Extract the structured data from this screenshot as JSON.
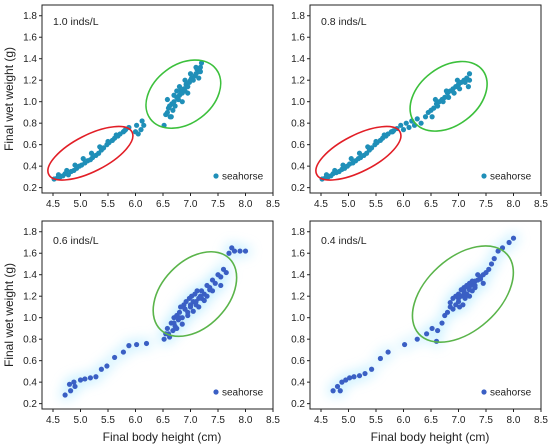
{
  "chart_data": [
    {
      "type": "scatter",
      "title": "1.0 inds/L",
      "xlabel": "",
      "ylabel": "Final wet weight (g)",
      "xlim": [
        4.3,
        8.5
      ],
      "ylim": [
        0.15,
        1.9
      ],
      "xticks": [
        "4.5",
        "5.0",
        "5.5",
        "6.0",
        "6.5",
        "7.0",
        "7.5",
        "8.0",
        "8.5"
      ],
      "yticks": [
        "0.2",
        "0.4",
        "0.6",
        "0.8",
        "1.0",
        "1.2",
        "1.4",
        "1.6",
        "1.8"
      ],
      "legend": {
        "label": "seahorse",
        "position": "bottom-right"
      },
      "point_color": "#1f8fb8",
      "glow": false,
      "series": [
        {
          "name": "seahorse",
          "x": [
            4.52,
            4.58,
            4.63,
            4.68,
            4.72,
            4.78,
            4.83,
            4.88,
            4.93,
            4.98,
            5.02,
            5.08,
            5.13,
            5.18,
            5.22,
            5.28,
            5.33,
            5.38,
            5.42,
            5.48,
            5.52,
            5.58,
            5.62,
            5.68,
            5.72,
            5.78,
            5.82,
            5.88,
            4.6,
            4.75,
            4.9,
            5.05,
            5.2,
            5.35,
            5.5,
            5.65,
            5.8,
            6.0,
            6.02,
            6.05,
            6.1,
            6.15,
            6.12,
            6.52,
            6.55,
            6.58,
            6.6,
            6.63,
            6.66,
            6.68,
            6.7,
            6.72,
            6.75,
            6.78,
            6.8,
            6.82,
            6.85,
            6.88,
            6.9,
            6.92,
            6.95,
            6.98,
            7.0,
            7.02,
            7.05,
            7.08,
            7.1,
            7.12,
            7.15,
            7.18,
            7.2,
            6.62,
            6.7,
            6.8,
            6.9,
            7.0,
            7.1,
            7.18,
            6.58,
            6.75,
            6.95,
            7.15,
            6.65,
            6.85
          ],
          "y": [
            0.28,
            0.29,
            0.3,
            0.31,
            0.33,
            0.32,
            0.35,
            0.36,
            0.38,
            0.4,
            0.41,
            0.43,
            0.45,
            0.46,
            0.48,
            0.5,
            0.52,
            0.55,
            0.57,
            0.6,
            0.62,
            0.64,
            0.66,
            0.68,
            0.7,
            0.72,
            0.74,
            0.76,
            0.32,
            0.36,
            0.41,
            0.47,
            0.52,
            0.58,
            0.63,
            0.69,
            0.73,
            0.72,
            0.78,
            0.7,
            0.74,
            0.78,
            0.82,
            0.78,
            0.88,
            0.9,
            0.94,
            0.86,
            0.98,
            0.92,
            1.0,
            0.96,
            1.04,
            1.02,
            1.06,
            1.1,
            1.08,
            1.12,
            1.1,
            1.16,
            1.14,
            1.18,
            1.2,
            1.22,
            1.2,
            1.24,
            1.26,
            1.3,
            1.28,
            1.32,
            1.36,
            0.96,
            1.06,
            1.14,
            1.2,
            1.26,
            1.32,
            1.28,
            1.02,
            1.1,
            1.08,
            1.22,
            0.86,
            1.0
          ]
        }
      ],
      "ellipses": [
        {
          "cx": 5.18,
          "cy": 0.52,
          "rx": 0.85,
          "ry": 0.1,
          "rotation": -27.0,
          "color": "#e21e26"
        },
        {
          "cx": 6.87,
          "cy": 1.07,
          "rx": 0.75,
          "ry": 0.16,
          "rotation": -37.0,
          "color": "#3cc03c"
        }
      ]
    },
    {
      "type": "scatter",
      "title": "0.8 inds/L",
      "xlabel": "",
      "ylabel": "",
      "xlim": [
        4.3,
        8.5
      ],
      "ylim": [
        0.15,
        1.9
      ],
      "xticks": [
        "4.5",
        "5.0",
        "5.5",
        "6.0",
        "6.5",
        "7.0",
        "7.5",
        "8.0",
        "8.5"
      ],
      "yticks": [
        "0.2",
        "0.4",
        "0.6",
        "0.8",
        "1.0",
        "1.2",
        "1.4",
        "1.6",
        "1.8"
      ],
      "legend": {
        "label": "seahorse",
        "position": "bottom-right"
      },
      "point_color": "#1f8fb8",
      "glow": false,
      "series": [
        {
          "name": "seahorse",
          "x": [
            4.52,
            4.58,
            4.63,
            4.68,
            4.72,
            4.78,
            4.83,
            4.88,
            4.93,
            4.98,
            5.02,
            5.08,
            5.13,
            5.18,
            5.22,
            5.28,
            5.33,
            5.38,
            5.42,
            5.48,
            5.52,
            5.58,
            5.62,
            5.68,
            5.72,
            5.78,
            5.82,
            5.88,
            4.6,
            4.75,
            4.9,
            5.05,
            5.2,
            5.35,
            5.5,
            5.65,
            5.8,
            5.95,
            6.0,
            6.05,
            6.1,
            6.15,
            6.2,
            6.25,
            6.32,
            6.4,
            6.45,
            6.5,
            6.55,
            6.6,
            6.65,
            6.7,
            6.75,
            6.8,
            6.85,
            6.9,
            6.95,
            7.0,
            7.05,
            7.1,
            7.15,
            7.2,
            6.52,
            6.62,
            6.72,
            6.82,
            6.92,
            7.02,
            7.12,
            7.2,
            6.58,
            6.78,
            6.98,
            7.18
          ],
          "y": [
            0.28,
            0.29,
            0.3,
            0.31,
            0.33,
            0.34,
            0.35,
            0.37,
            0.38,
            0.4,
            0.42,
            0.43,
            0.45,
            0.47,
            0.48,
            0.5,
            0.52,
            0.55,
            0.57,
            0.6,
            0.62,
            0.64,
            0.66,
            0.68,
            0.7,
            0.72,
            0.73,
            0.75,
            0.32,
            0.36,
            0.41,
            0.47,
            0.52,
            0.58,
            0.63,
            0.69,
            0.72,
            0.78,
            0.74,
            0.8,
            0.76,
            0.82,
            0.78,
            0.84,
            0.8,
            0.86,
            0.9,
            0.92,
            0.94,
            0.98,
            1.0,
            1.02,
            1.04,
            1.08,
            1.1,
            1.12,
            1.14,
            1.16,
            1.18,
            1.2,
            1.22,
            1.26,
            0.86,
            0.96,
            1.0,
            1.04,
            1.08,
            1.12,
            1.18,
            1.2,
            1.02,
            1.1,
            1.2,
            1.14
          ]
        }
      ],
      "ellipses": [
        {
          "cx": 5.18,
          "cy": 0.52,
          "rx": 0.85,
          "ry": 0.1,
          "rotation": -27.0,
          "color": "#e21e26"
        },
        {
          "cx": 6.82,
          "cy": 1.05,
          "rx": 0.78,
          "ry": 0.16,
          "rotation": -37.0,
          "color": "#3cc03c"
        }
      ]
    },
    {
      "type": "scatter",
      "title": "0.6 inds/L",
      "xlabel": "Final body height (cm)",
      "ylabel": "Final wet weight (g)",
      "xlim": [
        4.3,
        8.5
      ],
      "ylim": [
        0.15,
        1.9
      ],
      "xticks": [
        "4.5",
        "5.0",
        "5.5",
        "6.0",
        "6.5",
        "7.0",
        "7.5",
        "8.0",
        "8.5"
      ],
      "yticks": [
        "0.2",
        "0.4",
        "0.6",
        "0.8",
        "1.0",
        "1.2",
        "1.4",
        "1.6",
        "1.8"
      ],
      "legend": {
        "label": "seahorse",
        "position": "bottom-right"
      },
      "point_color": "#3a5fc4",
      "glow": true,
      "series": [
        {
          "name": "seahorse",
          "x": [
            4.72,
            4.8,
            4.82,
            4.88,
            4.9,
            5.0,
            5.08,
            5.18,
            5.28,
            5.38,
            5.48,
            5.62,
            5.78,
            5.88,
            6.02,
            6.2,
            6.52,
            6.55,
            6.58,
            6.62,
            6.65,
            6.68,
            6.7,
            6.72,
            6.75,
            6.78,
            6.8,
            6.82,
            6.85,
            6.88,
            6.9,
            6.92,
            6.95,
            6.98,
            7.0,
            7.02,
            7.05,
            7.08,
            7.1,
            7.12,
            7.15,
            7.18,
            7.2,
            7.25,
            7.3,
            7.35,
            7.4,
            7.45,
            7.5,
            7.55,
            7.6,
            7.65,
            7.7,
            7.75,
            7.8,
            7.9,
            8.0,
            6.6,
            6.7,
            6.8,
            6.9,
            7.0,
            7.1,
            7.2,
            7.3,
            7.4,
            6.75,
            6.95,
            7.15,
            7.35,
            7.55,
            6.85,
            7.05,
            7.25
          ],
          "y": [
            0.28,
            0.38,
            0.32,
            0.4,
            0.36,
            0.42,
            0.43,
            0.44,
            0.45,
            0.52,
            0.55,
            0.63,
            0.68,
            0.74,
            0.75,
            0.76,
            0.8,
            0.85,
            0.9,
            0.82,
            0.95,
            0.88,
            1.0,
            0.92,
            1.02,
            0.98,
            1.05,
            1.1,
            1.0,
            1.12,
            1.08,
            1.15,
            1.05,
            1.18,
            1.1,
            1.2,
            1.15,
            1.22,
            1.12,
            1.25,
            1.18,
            1.2,
            1.25,
            1.22,
            1.3,
            1.28,
            1.35,
            1.32,
            1.4,
            1.38,
            1.45,
            1.42,
            1.6,
            1.65,
            1.62,
            1.62,
            1.62,
            0.85,
            0.95,
            1.0,
            1.08,
            1.12,
            1.15,
            1.18,
            1.2,
            1.25,
            0.9,
            1.02,
            1.1,
            1.26,
            1.3,
            0.94,
            1.06,
            1.16
          ]
        }
      ],
      "ellipses": [
        {
          "cx": 7.08,
          "cy": 1.22,
          "rx": 0.9,
          "ry": 0.18,
          "rotation": -46.0,
          "color": "#5ab44a"
        }
      ]
    },
    {
      "type": "scatter",
      "title": "0.4 inds/L",
      "xlabel": "Final body height (cm)",
      "ylabel": "",
      "xlim": [
        4.3,
        8.5
      ],
      "ylim": [
        0.15,
        1.9
      ],
      "xticks": [
        "4.5",
        "5.0",
        "5.5",
        "6.0",
        "6.5",
        "7.0",
        "7.5",
        "8.0",
        "8.5"
      ],
      "yticks": [
        "0.2",
        "0.4",
        "0.6",
        "0.8",
        "1.0",
        "1.2",
        "1.4",
        "1.6",
        "1.8"
      ],
      "legend": {
        "label": "seahorse",
        "position": "bottom-right"
      },
      "point_color": "#3a5fc4",
      "glow": true,
      "series": [
        {
          "name": "seahorse",
          "x": [
            4.72,
            4.8,
            4.85,
            4.88,
            4.95,
            5.02,
            5.1,
            5.2,
            5.3,
            5.42,
            5.58,
            5.72,
            6.02,
            6.25,
            6.42,
            6.52,
            6.6,
            6.7,
            6.75,
            6.8,
            6.85,
            6.9,
            6.95,
            7.0,
            7.02,
            7.05,
            7.08,
            7.1,
            7.12,
            7.15,
            7.18,
            7.2,
            7.22,
            7.25,
            7.28,
            7.3,
            7.35,
            7.4,
            7.45,
            7.5,
            7.55,
            7.6,
            7.65,
            7.72,
            7.8,
            7.92,
            8.0,
            6.9,
            7.0,
            7.1,
            7.2,
            7.3,
            7.4,
            6.95,
            7.05,
            7.15,
            7.25,
            7.35,
            7.0,
            7.1,
            7.2,
            7.3,
            6.85,
            7.45,
            6.62
          ],
          "y": [
            0.32,
            0.36,
            0.32,
            0.4,
            0.42,
            0.44,
            0.45,
            0.46,
            0.48,
            0.52,
            0.62,
            0.68,
            0.75,
            0.8,
            0.85,
            0.9,
            0.78,
            0.95,
            1.02,
            1.05,
            1.1,
            1.08,
            1.12,
            1.15,
            1.1,
            1.2,
            1.12,
            1.25,
            1.18,
            1.22,
            1.28,
            1.2,
            1.3,
            1.25,
            1.32,
            1.28,
            1.35,
            1.38,
            1.4,
            1.42,
            1.45,
            1.5,
            1.55,
            1.62,
            1.65,
            1.7,
            1.74,
            1.18,
            1.22,
            1.28,
            1.32,
            1.34,
            1.36,
            1.2,
            1.26,
            1.3,
            1.34,
            1.4,
            1.18,
            1.22,
            1.26,
            1.3,
            1.14,
            1.32,
            0.88
          ]
        }
      ],
      "ellipses": [
        {
          "cx": 7.08,
          "cy": 1.22,
          "rx": 1.08,
          "ry": 0.2,
          "rotation": -42.0,
          "color": "#5ab44a"
        }
      ]
    }
  ]
}
